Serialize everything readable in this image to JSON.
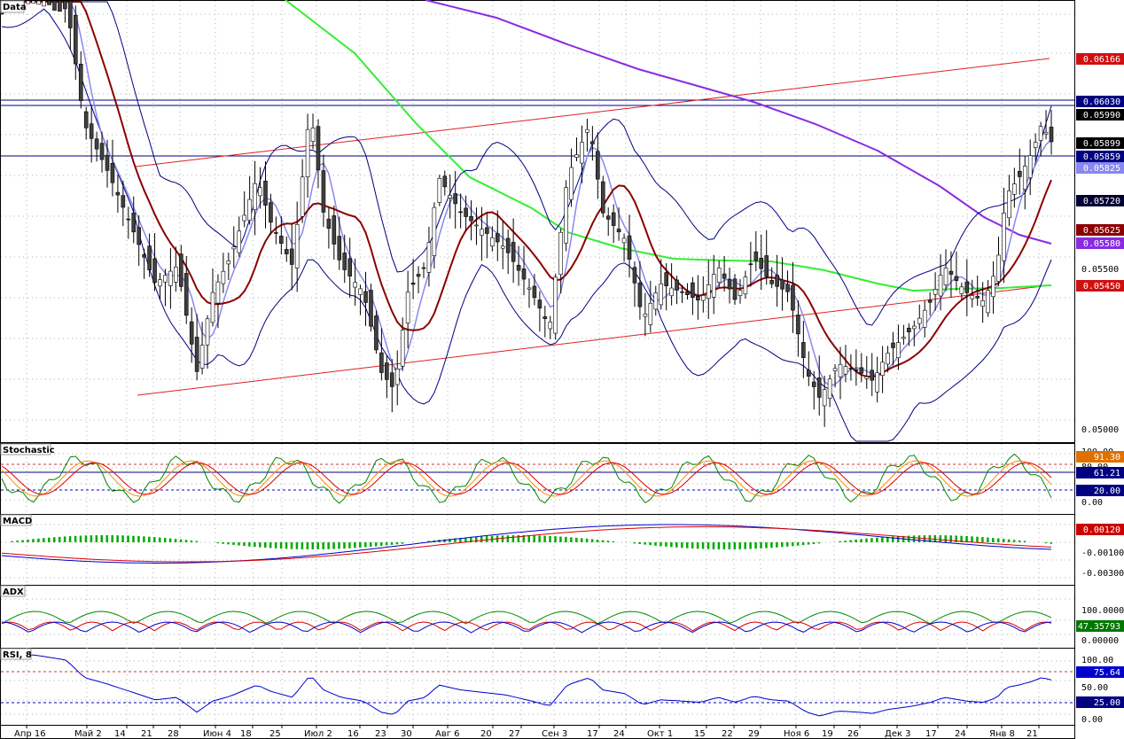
{
  "app": {
    "title": "Data"
  },
  "panels": {
    "main": {
      "label": "Data"
    },
    "stoch": {
      "label": "Stochastic"
    },
    "macd": {
      "label": "MACD"
    },
    "adx": {
      "label": "ADX"
    },
    "rsi": {
      "label": "RSI, 8"
    }
  },
  "colors": {
    "candle_up": "#ffffff",
    "candle_down": "#404040",
    "candle_outline": "#000000",
    "ma_fast": "#8888ee",
    "ma_mid": "#8b0000",
    "ma_slow_green": "#33ee33",
    "ma_slow_purple": "#8a2be2",
    "bollinger": "#000080",
    "trendline": "#e02020",
    "hline": "#000080",
    "grid": "#b0b0b0"
  },
  "price_axis": {
    "ticks": [
      "0.05000",
      "0.05500"
    ],
    "tags": [
      {
        "text": "0.06166",
        "bg": "#d01010",
        "fg": "#ffffff"
      },
      {
        "text": "0.06030",
        "bg": "#000080",
        "fg": "#ffffff"
      },
      {
        "text": "0.05990",
        "bg": "#000000",
        "fg": "#ffffff"
      },
      {
        "text": "0.05899",
        "bg": "#000000",
        "fg": "#ffffff"
      },
      {
        "text": "0.05859",
        "bg": "#000080",
        "fg": "#ffffff"
      },
      {
        "text": "0.05825",
        "bg": "#8888ee",
        "fg": "#ffffff"
      },
      {
        "text": "0.05720",
        "bg": "#000033",
        "fg": "#ffffff"
      },
      {
        "text": "0.05625",
        "bg": "#8b0000",
        "fg": "#ffffff"
      },
      {
        "text": "0.05580",
        "bg": "#8a2be2",
        "fg": "#ffffff"
      },
      {
        "text": "0.05450",
        "bg": "#d01010",
        "fg": "#ffffff"
      }
    ]
  },
  "stoch_axis": {
    "ticks": [
      "100.00",
      "80.00",
      "20.00",
      "0.00"
    ],
    "tags": [
      {
        "text": "91.30",
        "bg": "#e07000",
        "fg": "#ffffff"
      },
      {
        "text": "61.21",
        "bg": "#000080",
        "fg": "#ffffff"
      },
      {
        "text": "20.00",
        "bg": "#000080",
        "fg": "#ffffff"
      }
    ]
  },
  "macd_axis": {
    "ticks": [
      "0.00120",
      "-0.00100",
      "-0.00300"
    ],
    "tags": [
      {
        "text": "0.00120",
        "bg": "#cc0000",
        "fg": "#ffffff"
      }
    ]
  },
  "adx_axis": {
    "ticks": [
      "100.00000",
      "0.00000"
    ],
    "tags": [
      {
        "text": "47.35793",
        "bg": "#007700",
        "fg": "#ffffff"
      }
    ]
  },
  "rsi_axis": {
    "ticks": [
      "100.00",
      "75.64",
      "50.00",
      "25.00",
      "0.00"
    ],
    "tags": [
      {
        "text": "75.64",
        "bg": "#0000cc",
        "fg": "#ffffff"
      },
      {
        "text": "25.00",
        "bg": "#000080",
        "fg": "#ffffff"
      }
    ]
  },
  "time_axis": {
    "labels": [
      "Апр 16",
      "Май 2",
      "14",
      "21",
      "28",
      "Июн 4",
      "18",
      "25",
      "Июл 2",
      "16",
      "23",
      "30",
      "Авг 6",
      "20",
      "27",
      "Сен 3",
      "17",
      "24",
      "Окт 1",
      "15",
      "22",
      "29",
      "Ноя 6",
      "19",
      "26",
      "Дек 3",
      "17",
      "24",
      "Янв 8",
      "21"
    ]
  },
  "chart_data": {
    "type": "candlestick",
    "title": "Data",
    "price_range": [
      0.0495,
      0.063
    ],
    "horizontal_levels": [
      0.0603,
      0.0599,
      0.05859
    ],
    "trendlines": [
      {
        "from": {
          "date": "Апр 21",
          "value": 0.0588
        },
        "to": {
          "date": "Янв 21",
          "value": 0.06166
        }
      },
      {
        "from": {
          "date": "Апр 21",
          "value": 0.051
        },
        "to": {
          "date": "Янв 21",
          "value": 0.0545
        }
      }
    ],
    "series": [
      {
        "name": "Bollinger upper"
      },
      {
        "name": "Bollinger lower"
      },
      {
        "name": "MA fast"
      },
      {
        "name": "MA mid"
      },
      {
        "name": "MA slow green"
      },
      {
        "name": "MA slow purple"
      }
    ],
    "last": {
      "close": 0.05899,
      "ma_fast": 0.05825,
      "ma_mid": 0.05625,
      "ma_purple": 0.0558,
      "stoch_k": 91.3,
      "stoch_d": 61.21,
      "macd": 0.0012,
      "adx": 47.35793,
      "rsi": 75.64
    }
  }
}
